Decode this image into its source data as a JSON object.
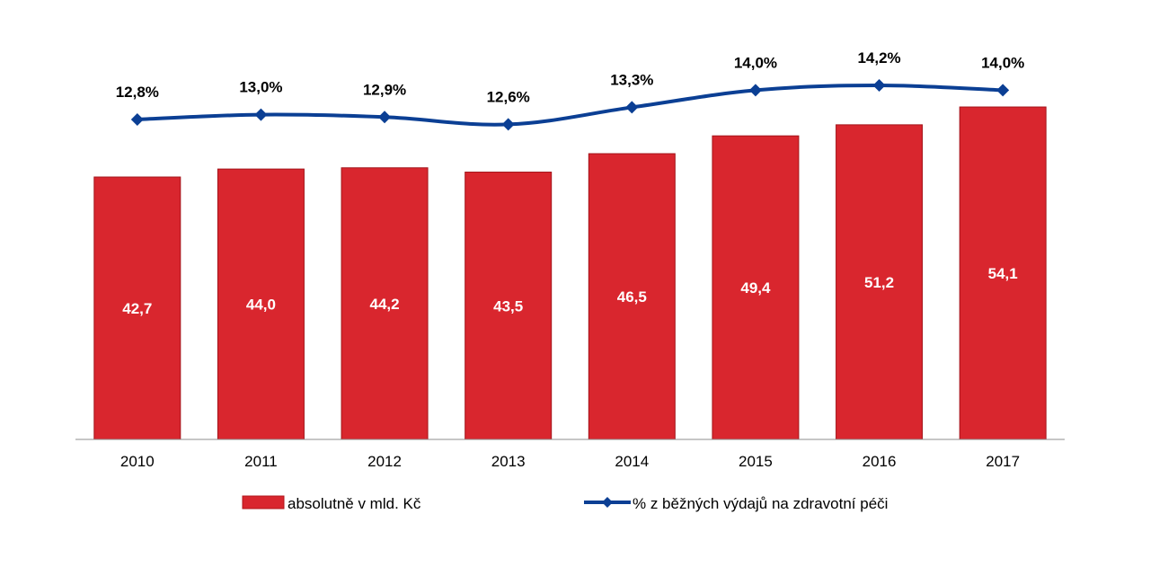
{
  "chart_data": {
    "type": "bar",
    "categories": [
      "2010",
      "2011",
      "2012",
      "2013",
      "2014",
      "2015",
      "2016",
      "2017"
    ],
    "series": [
      {
        "name": "absolutně v mld. Kč",
        "type": "bar",
        "axis": "primary",
        "values": [
          42.7,
          44.0,
          44.2,
          43.5,
          46.5,
          49.4,
          51.2,
          54.1
        ],
        "labels": [
          "42,7",
          "44,0",
          "44,2",
          "43,5",
          "46,5",
          "49,4",
          "51,2",
          "54,1"
        ],
        "color": "#d9262e"
      },
      {
        "name": "% z běžných výdajů na zdravotní péči",
        "type": "line",
        "axis": "secondary",
        "values": [
          12.8,
          13.0,
          12.9,
          12.6,
          13.3,
          14.0,
          14.2,
          14.0
        ],
        "labels": [
          "12,8%",
          "13,0%",
          "12,9%",
          "12,6%",
          "13,3%",
          "14,0%",
          "14,2%",
          "14,0%"
        ],
        "color": "#0b3f94"
      }
    ],
    "ylim": [
      0,
      60
    ],
    "y2lim": [
      0,
      15
    ],
    "grid": false,
    "legend_position": "bottom"
  }
}
